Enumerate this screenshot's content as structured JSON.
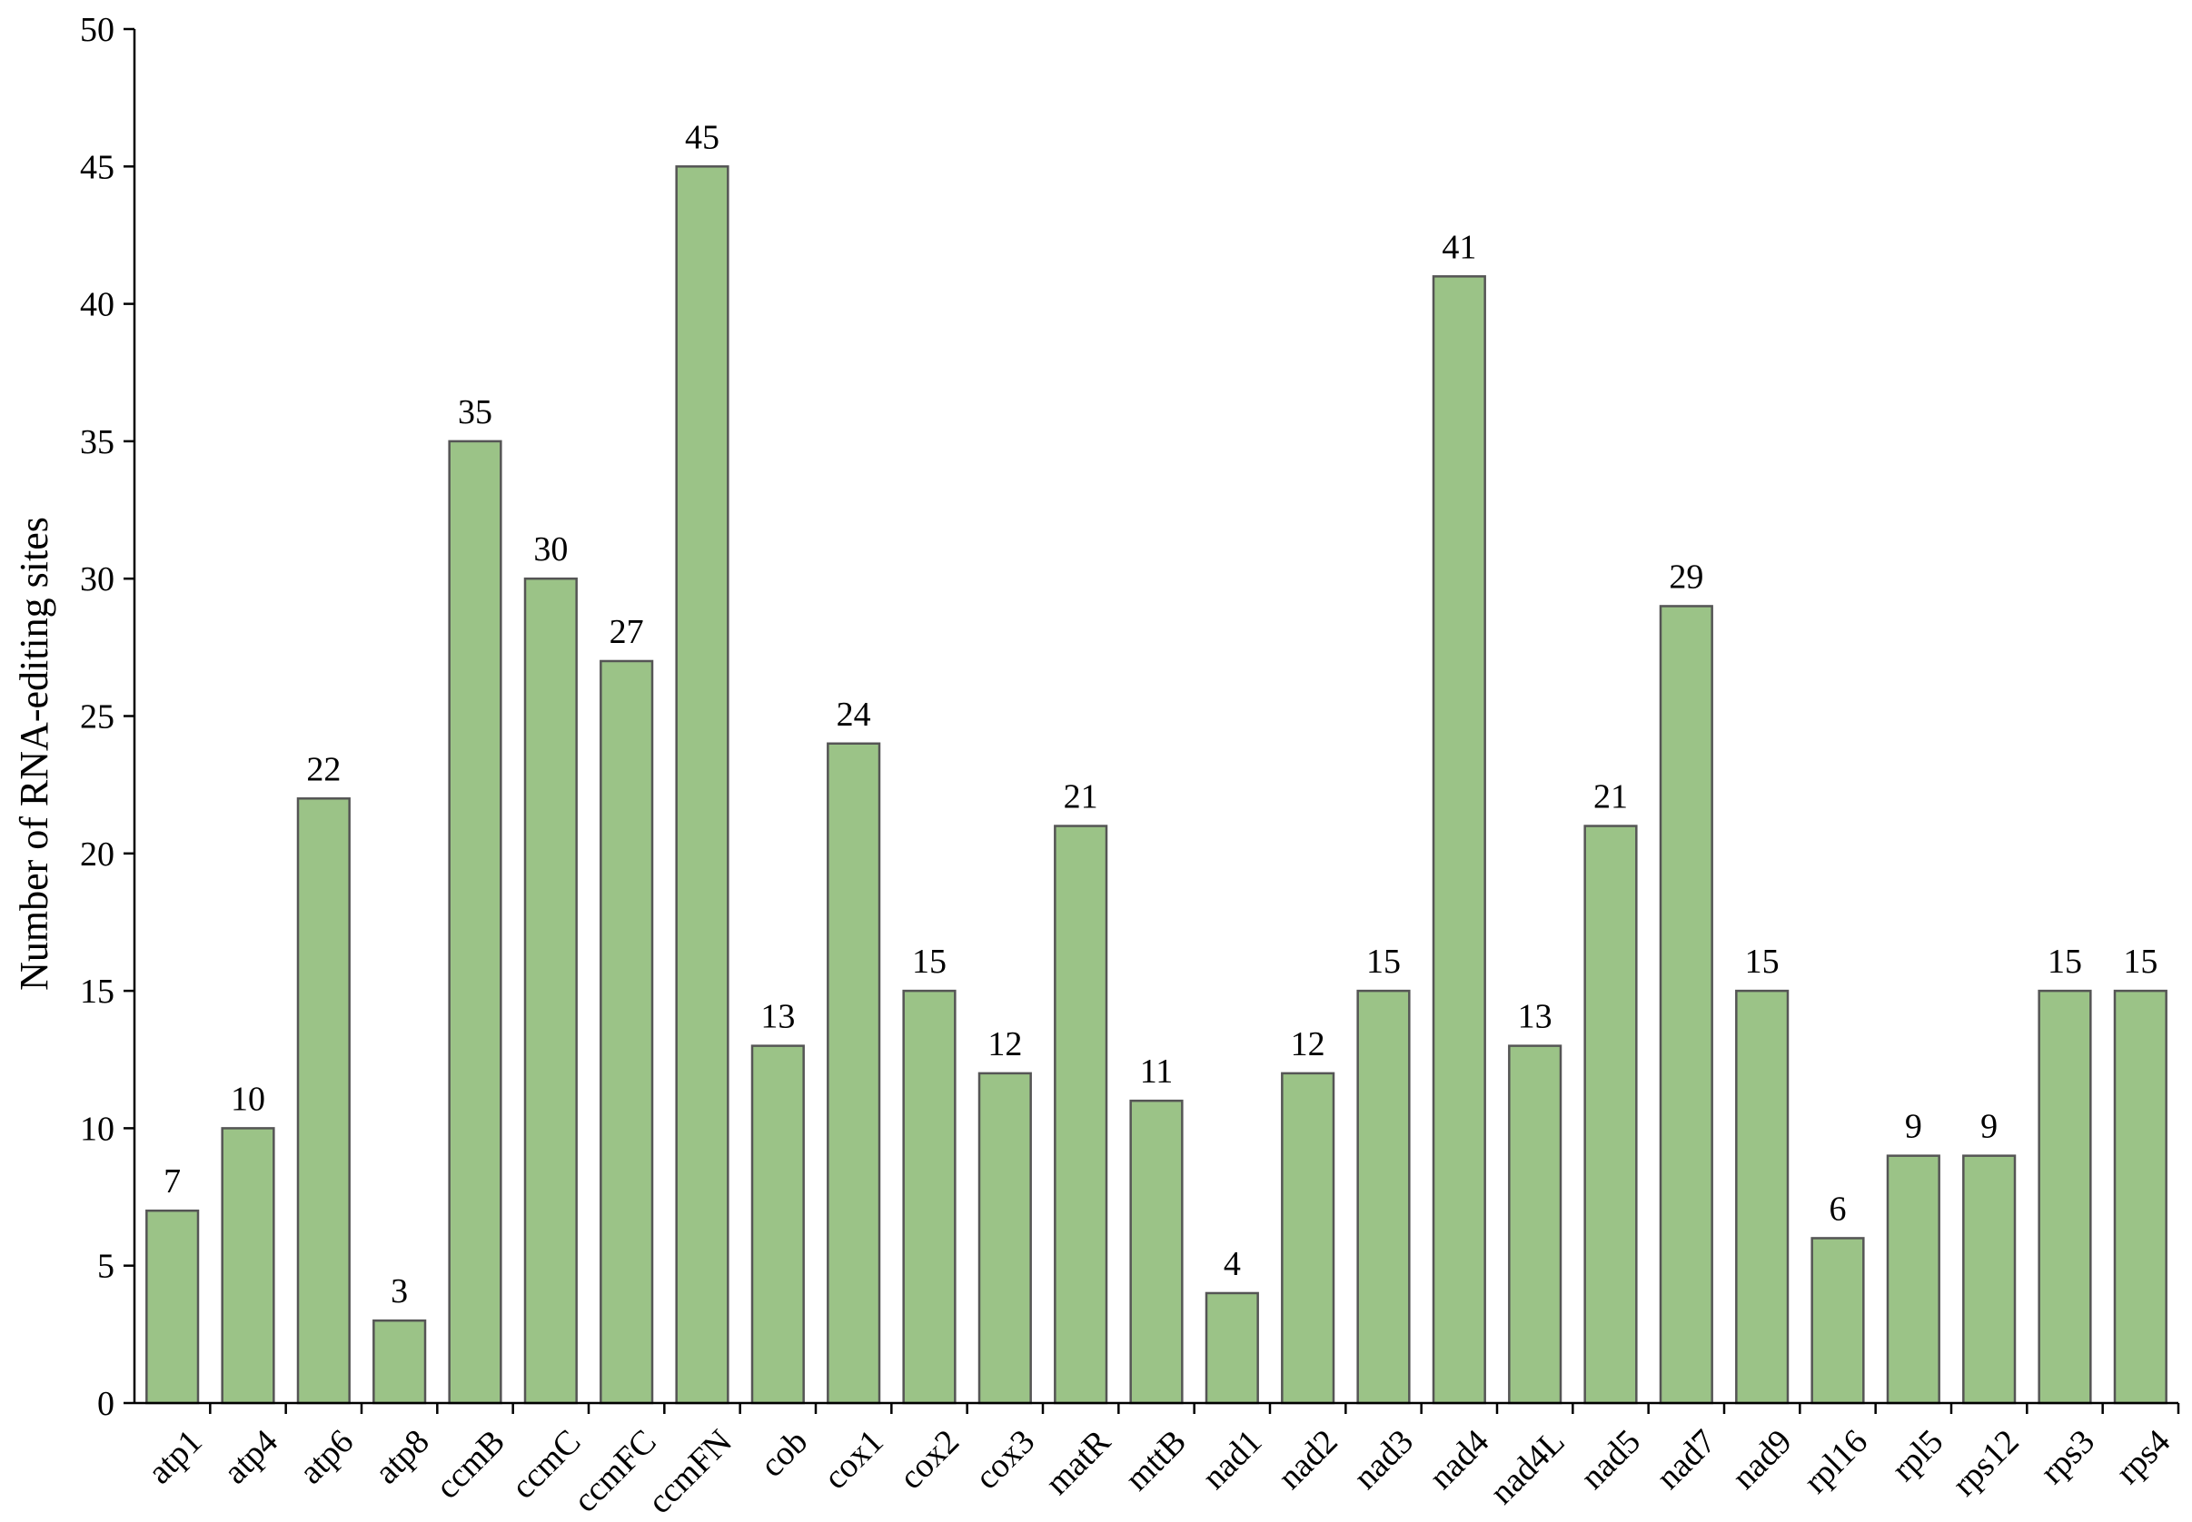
{
  "chart_data": {
    "type": "bar",
    "ylabel": "Number of RNA-editing sites",
    "xlabel": "",
    "ylim": [
      0,
      50
    ],
    "yticks": [
      0,
      5,
      10,
      15,
      20,
      25,
      30,
      35,
      40,
      45,
      50
    ],
    "grid": false,
    "legend": "none",
    "bar_color": "#9bc387",
    "bar_border_color": "#555555",
    "categories": [
      "atp1",
      "atp4",
      "atp6",
      "atp8",
      "ccmB",
      "ccmC",
      "ccmFC",
      "ccmFN",
      "cob",
      "cox1",
      "cox2",
      "cox3",
      "matR",
      "mttB",
      "nad1",
      "nad2",
      "nad3",
      "nad4",
      "nad4L",
      "nad5",
      "nad7",
      "nad9",
      "rpl16",
      "rpl5",
      "rps12",
      "rps3",
      "rps4"
    ],
    "values": [
      7,
      10,
      22,
      3,
      35,
      30,
      27,
      45,
      13,
      24,
      15,
      12,
      21,
      11,
      4,
      12,
      15,
      41,
      13,
      21,
      29,
      15,
      6,
      9,
      9,
      15,
      15
    ]
  }
}
